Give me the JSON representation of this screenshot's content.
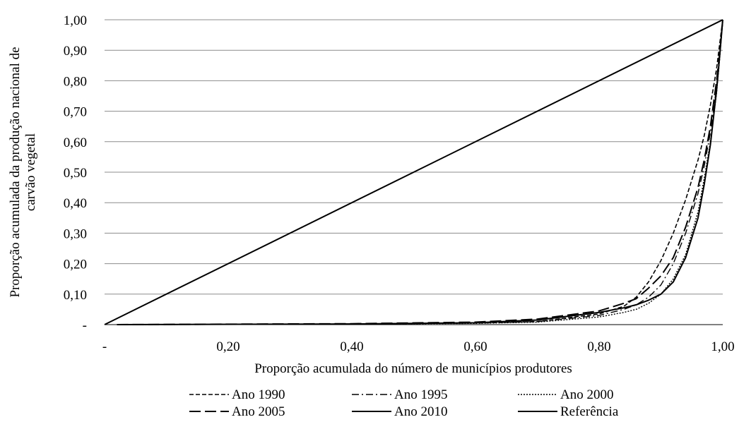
{
  "chart_data": {
    "type": "line",
    "title": "",
    "xlabel": "Proporção acumulada do número de municípios produtores",
    "ylabel_lines": [
      "Proporção acumulada da produção nacional de",
      "carvão vegetal"
    ],
    "xlim": [
      0,
      1
    ],
    "ylim": [
      0,
      1
    ],
    "x_ticks": [
      {
        "value": 0,
        "label": "-"
      },
      {
        "value": 0.2,
        "label": "0,20"
      },
      {
        "value": 0.4,
        "label": "0,40"
      },
      {
        "value": 0.6,
        "label": "0,60"
      },
      {
        "value": 0.8,
        "label": "0,80"
      },
      {
        "value": 1.0,
        "label": "1,00"
      }
    ],
    "y_ticks": [
      {
        "value": 0,
        "label": "-"
      },
      {
        "value": 0.1,
        "label": "0,10"
      },
      {
        "value": 0.2,
        "label": "0,20"
      },
      {
        "value": 0.3,
        "label": "0,30"
      },
      {
        "value": 0.4,
        "label": "0,40"
      },
      {
        "value": 0.5,
        "label": "0,50"
      },
      {
        "value": 0.6,
        "label": "0,60"
      },
      {
        "value": 0.7,
        "label": "0,70"
      },
      {
        "value": 0.8,
        "label": "0,80"
      },
      {
        "value": 0.9,
        "label": "0,90"
      },
      {
        "value": 1.0,
        "label": "1,00"
      }
    ],
    "grid": "horizontal",
    "legend_position": "bottom",
    "series": [
      {
        "name": "Ano 1990",
        "style": "short-dash",
        "x": [
          0.02,
          0.4,
          0.6,
          0.7,
          0.8,
          0.84,
          0.86,
          0.88,
          0.9,
          0.92,
          0.94,
          0.96,
          0.97,
          0.98,
          0.99,
          0.995,
          1.0
        ],
        "y": [
          0,
          0.002,
          0.005,
          0.01,
          0.035,
          0.06,
          0.09,
          0.14,
          0.21,
          0.3,
          0.41,
          0.54,
          0.62,
          0.72,
          0.84,
          0.92,
          1.0
        ]
      },
      {
        "name": "Ano 1995",
        "style": "dash-dot",
        "x": [
          0.02,
          0.4,
          0.6,
          0.7,
          0.8,
          0.84,
          0.86,
          0.88,
          0.9,
          0.92,
          0.94,
          0.96,
          0.97,
          0.98,
          0.99,
          0.995,
          1.0
        ],
        "y": [
          0,
          0.002,
          0.005,
          0.01,
          0.03,
          0.05,
          0.065,
          0.09,
          0.13,
          0.2,
          0.3,
          0.43,
          0.52,
          0.63,
          0.78,
          0.88,
          1.0
        ]
      },
      {
        "name": "Ano 2000",
        "style": "dotted",
        "x": [
          0.02,
          0.4,
          0.6,
          0.7,
          0.8,
          0.84,
          0.86,
          0.88,
          0.9,
          0.92,
          0.94,
          0.96,
          0.97,
          0.98,
          0.99,
          0.995,
          1.0
        ],
        "y": [
          0,
          0.002,
          0.004,
          0.008,
          0.025,
          0.04,
          0.05,
          0.07,
          0.1,
          0.15,
          0.23,
          0.37,
          0.48,
          0.6,
          0.76,
          0.87,
          1.0
        ]
      },
      {
        "name": "Ano 2005",
        "style": "long-dash",
        "x": [
          0.02,
          0.4,
          0.6,
          0.7,
          0.8,
          0.84,
          0.86,
          0.88,
          0.9,
          0.92,
          0.94,
          0.96,
          0.97,
          0.98,
          0.99,
          0.995,
          1.0
        ],
        "y": [
          0,
          0.003,
          0.008,
          0.018,
          0.045,
          0.07,
          0.085,
          0.12,
          0.16,
          0.22,
          0.32,
          0.45,
          0.54,
          0.65,
          0.8,
          0.89,
          1.0
        ]
      },
      {
        "name": "Ano 2010",
        "style": "solid",
        "x": [
          0.02,
          0.4,
          0.6,
          0.7,
          0.8,
          0.84,
          0.86,
          0.88,
          0.9,
          0.92,
          0.94,
          0.96,
          0.97,
          0.98,
          0.99,
          0.995,
          1.0
        ],
        "y": [
          0,
          0.002,
          0.006,
          0.015,
          0.04,
          0.055,
          0.065,
          0.08,
          0.1,
          0.14,
          0.22,
          0.35,
          0.46,
          0.59,
          0.77,
          0.88,
          1.0
        ]
      },
      {
        "name": "Referência",
        "style": "solid",
        "x": [
          0,
          1
        ],
        "y": [
          0,
          1
        ]
      }
    ]
  }
}
